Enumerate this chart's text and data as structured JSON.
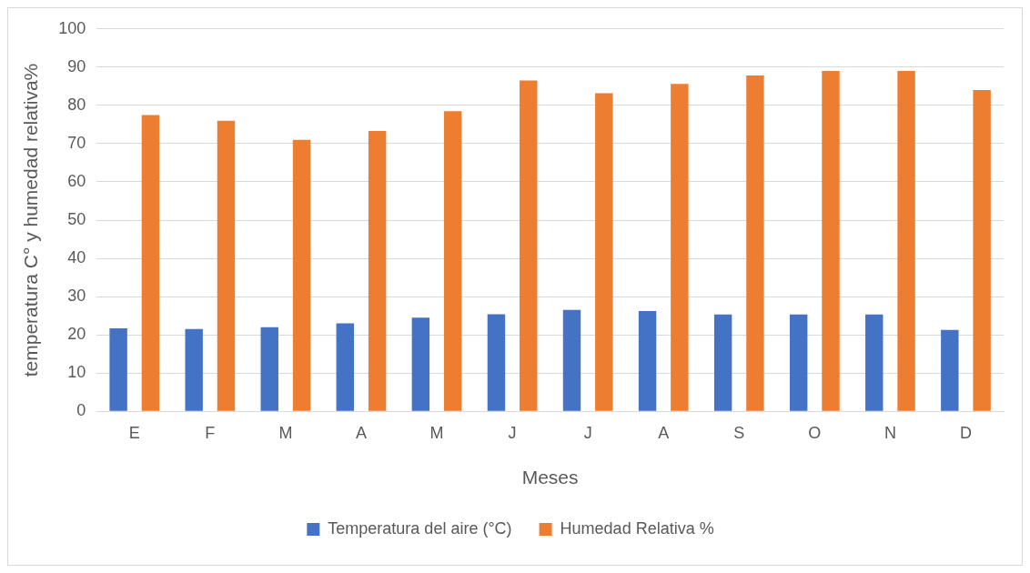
{
  "chart_data": {
    "type": "bar",
    "categories": [
      "E",
      "F",
      "M",
      "A",
      "M",
      "J",
      "J",
      "A",
      "S",
      "O",
      "N",
      "D"
    ],
    "series": [
      {
        "name": "Temperatura del aire (°C)",
        "color": "#4472c4",
        "values": [
          21.7,
          21.5,
          22,
          23,
          24.5,
          25.4,
          26.5,
          26.2,
          25.3,
          25.3,
          25.3,
          21.3
        ]
      },
      {
        "name": "Humedad Relativa %",
        "color": "#ed7d31",
        "values": [
          77.5,
          76,
          71,
          73.3,
          78.5,
          86.5,
          83.2,
          85.6,
          87.8,
          89,
          89,
          84
        ]
      }
    ],
    "xlabel": "Meses",
    "ylabel": "temperatura C° y humedad relativa%",
    "ylim": [
      0,
      100
    ],
    "yticks": [
      0,
      10,
      20,
      30,
      40,
      50,
      60,
      70,
      80,
      90,
      100
    ],
    "grid": "y",
    "legend": "bottom"
  }
}
